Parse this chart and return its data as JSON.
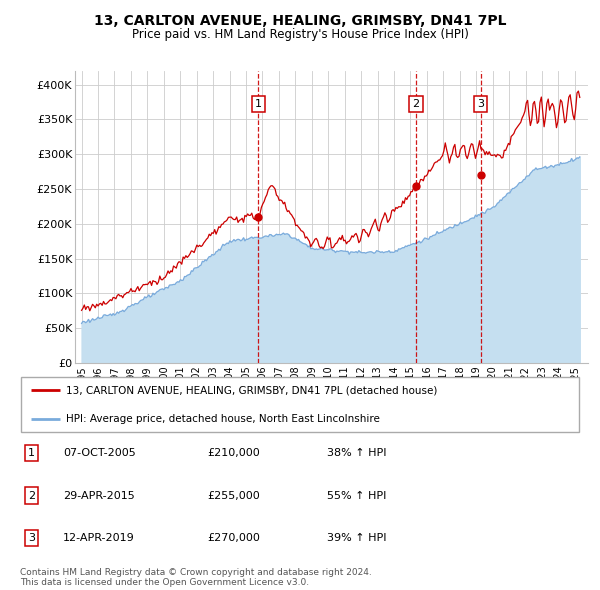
{
  "title": "13, CARLTON AVENUE, HEALING, GRIMSBY, DN41 7PL",
  "subtitle": "Price paid vs. HM Land Registry's House Price Index (HPI)",
  "legend_line1": "13, CARLTON AVENUE, HEALING, GRIMSBY, DN41 7PL (detached house)",
  "legend_line2": "HPI: Average price, detached house, North East Lincolnshire",
  "footer1": "Contains HM Land Registry data © Crown copyright and database right 2024.",
  "footer2": "This data is licensed under the Open Government Licence v3.0.",
  "transactions": [
    {
      "num": "1",
      "date": "07-OCT-2005",
      "price": "£210,000",
      "pct": "38% ↑ HPI",
      "x": 2005.75
    },
    {
      "num": "2",
      "date": "29-APR-2015",
      "price": "£255,000",
      "pct": "55% ↑ HPI",
      "x": 2015.33
    },
    {
      "num": "3",
      "date": "12-APR-2019",
      "price": "£270,000",
      "pct": "39% ↑ HPI",
      "x": 2019.28
    }
  ],
  "trans_price_vals": [
    210000,
    255000,
    270000
  ],
  "hpi_color": "#7aabdc",
  "hpi_fill_color": "#c5dff0",
  "price_color": "#cc0000",
  "fig_bg_color": "#ffffff",
  "plot_bg_color": "#ffffff",
  "vline_color": "#cc0000",
  "grid_color": "#cccccc",
  "ylim": [
    0,
    420000
  ],
  "yticks": [
    0,
    50000,
    100000,
    150000,
    200000,
    250000,
    300000,
    350000,
    400000
  ],
  "xlim": [
    1994.6,
    2025.8
  ],
  "xtick_years": [
    1995,
    1996,
    1997,
    1998,
    1999,
    2000,
    2001,
    2002,
    2003,
    2004,
    2005,
    2006,
    2007,
    2008,
    2009,
    2010,
    2011,
    2012,
    2013,
    2014,
    2015,
    2016,
    2017,
    2018,
    2019,
    2020,
    2021,
    2022,
    2023,
    2024,
    2025
  ]
}
